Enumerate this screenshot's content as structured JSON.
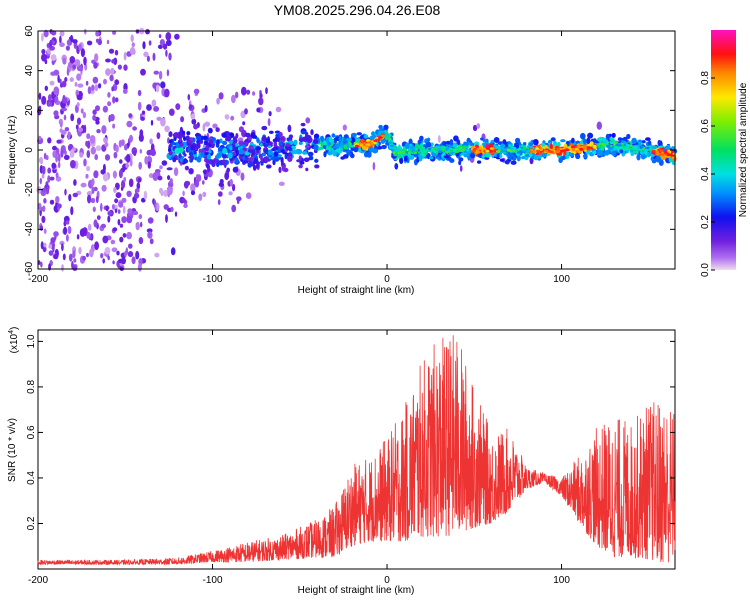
{
  "title": "YM08.2025.296.04.26.E08",
  "chart_data": [
    {
      "type": "heatmap",
      "xlabel": "Height of straight line (km)",
      "ylabel": "Frequency (Hz)",
      "xlim": [
        -200,
        165
      ],
      "ylim": [
        -60,
        60
      ],
      "xticks": [
        -200,
        -100,
        0,
        100
      ],
      "yticks": [
        -60,
        -40,
        -20,
        0,
        20,
        40,
        60
      ],
      "ridge": {
        "description": "Concentrated high-amplitude band near 0 Hz from ~-120 km to 165 km",
        "x": [
          -120,
          -80,
          -40,
          -10,
          0,
          5,
          20,
          50,
          80,
          100,
          130,
          150,
          165
        ],
        "frequency_center": [
          0,
          0,
          2,
          3,
          8,
          -2,
          0,
          0,
          0,
          0,
          3,
          0,
          -3
        ],
        "peak_amplitude_x": [
          -10,
          55,
          90,
          100,
          112,
          160
        ]
      },
      "colorbar": {
        "label": "Normalized spectral amplitude",
        "range": [
          0.0,
          1.0
        ],
        "ticks": [
          "0.0",
          "0.2",
          "0.4",
          "0.6",
          "0.8"
        ],
        "tick_values": [
          0.0,
          0.2,
          0.4,
          0.6,
          0.8
        ]
      }
    },
    {
      "type": "line",
      "xlabel": "Height of straight line (km)",
      "ylabel": "SNR (10 * v/v)",
      "multiplier": "(x10",
      "multiplier_exp": "4",
      "multiplier_close": ")",
      "xlim": [
        -200,
        165
      ],
      "ylim": [
        0,
        1.05
      ],
      "xticks": [
        -200,
        -100,
        0,
        100
      ],
      "yticks": [
        "0.2",
        "0.4",
        "0.6",
        "0.8",
        "1.0"
      ],
      "ytick_values": [
        0.2,
        0.4,
        0.6,
        0.8,
        1.0
      ],
      "series": [
        {
          "name": "SNR",
          "color": "#ee3333",
          "envelope_x": [
            -200,
            -150,
            -120,
            -100,
            -80,
            -60,
            -40,
            -30,
            -20,
            -10,
            0,
            10,
            20,
            30,
            40,
            50,
            60,
            70,
            80,
            90,
            100,
            110,
            120,
            130,
            140,
            150,
            160,
            165
          ],
          "envelope_y_upper": [
            0.04,
            0.04,
            0.05,
            0.08,
            0.12,
            0.15,
            0.22,
            0.28,
            0.46,
            0.5,
            0.58,
            0.72,
            0.92,
            1.02,
            1.05,
            0.8,
            0.6,
            0.62,
            0.45,
            0.42,
            0.4,
            0.5,
            0.62,
            0.68,
            0.65,
            0.74,
            0.76,
            0.7
          ],
          "envelope_y_lower": [
            0.02,
            0.02,
            0.02,
            0.03,
            0.03,
            0.04,
            0.05,
            0.05,
            0.1,
            0.12,
            0.12,
            0.12,
            0.14,
            0.14,
            0.15,
            0.18,
            0.2,
            0.25,
            0.35,
            0.38,
            0.32,
            0.2,
            0.1,
            0.05,
            0.05,
            0.04,
            0.02,
            0.05
          ]
        }
      ]
    }
  ]
}
